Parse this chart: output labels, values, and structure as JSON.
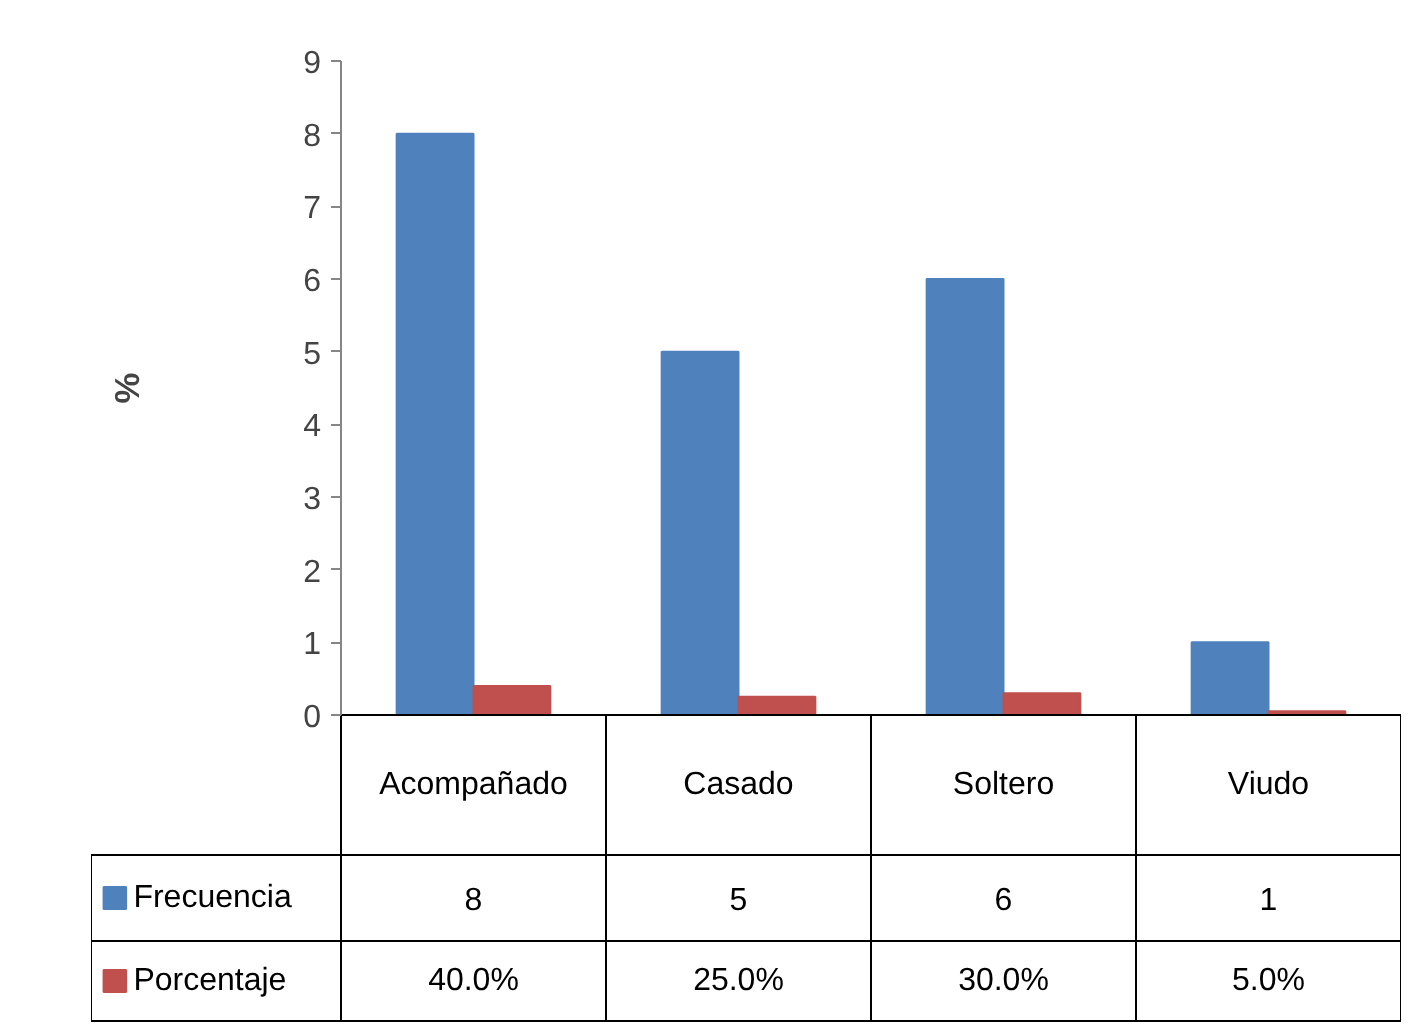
{
  "chart_data": {
    "type": "bar",
    "ylabel": "%",
    "categories": [
      "Acompañado",
      "Casado",
      "Soltero",
      "Viudo"
    ],
    "series": [
      {
        "name": "Frecuencia",
        "color": "#4f81bd",
        "values": [
          8,
          5,
          6,
          1
        ],
        "value_labels": [
          "8",
          "5",
          "6",
          "1"
        ]
      },
      {
        "name": "Porcentaje",
        "color": "#c0504d",
        "values": [
          0.4,
          0.25,
          0.3,
          0.05
        ],
        "value_labels": [
          "40.0%",
          "25.0%",
          "30.0%",
          "5.0%"
        ]
      }
    ],
    "ylim": [
      0,
      9
    ],
    "yticks": [
      0,
      1,
      2,
      3,
      4,
      5,
      6,
      7,
      8,
      9
    ],
    "grid": false,
    "legend": "bottom"
  }
}
